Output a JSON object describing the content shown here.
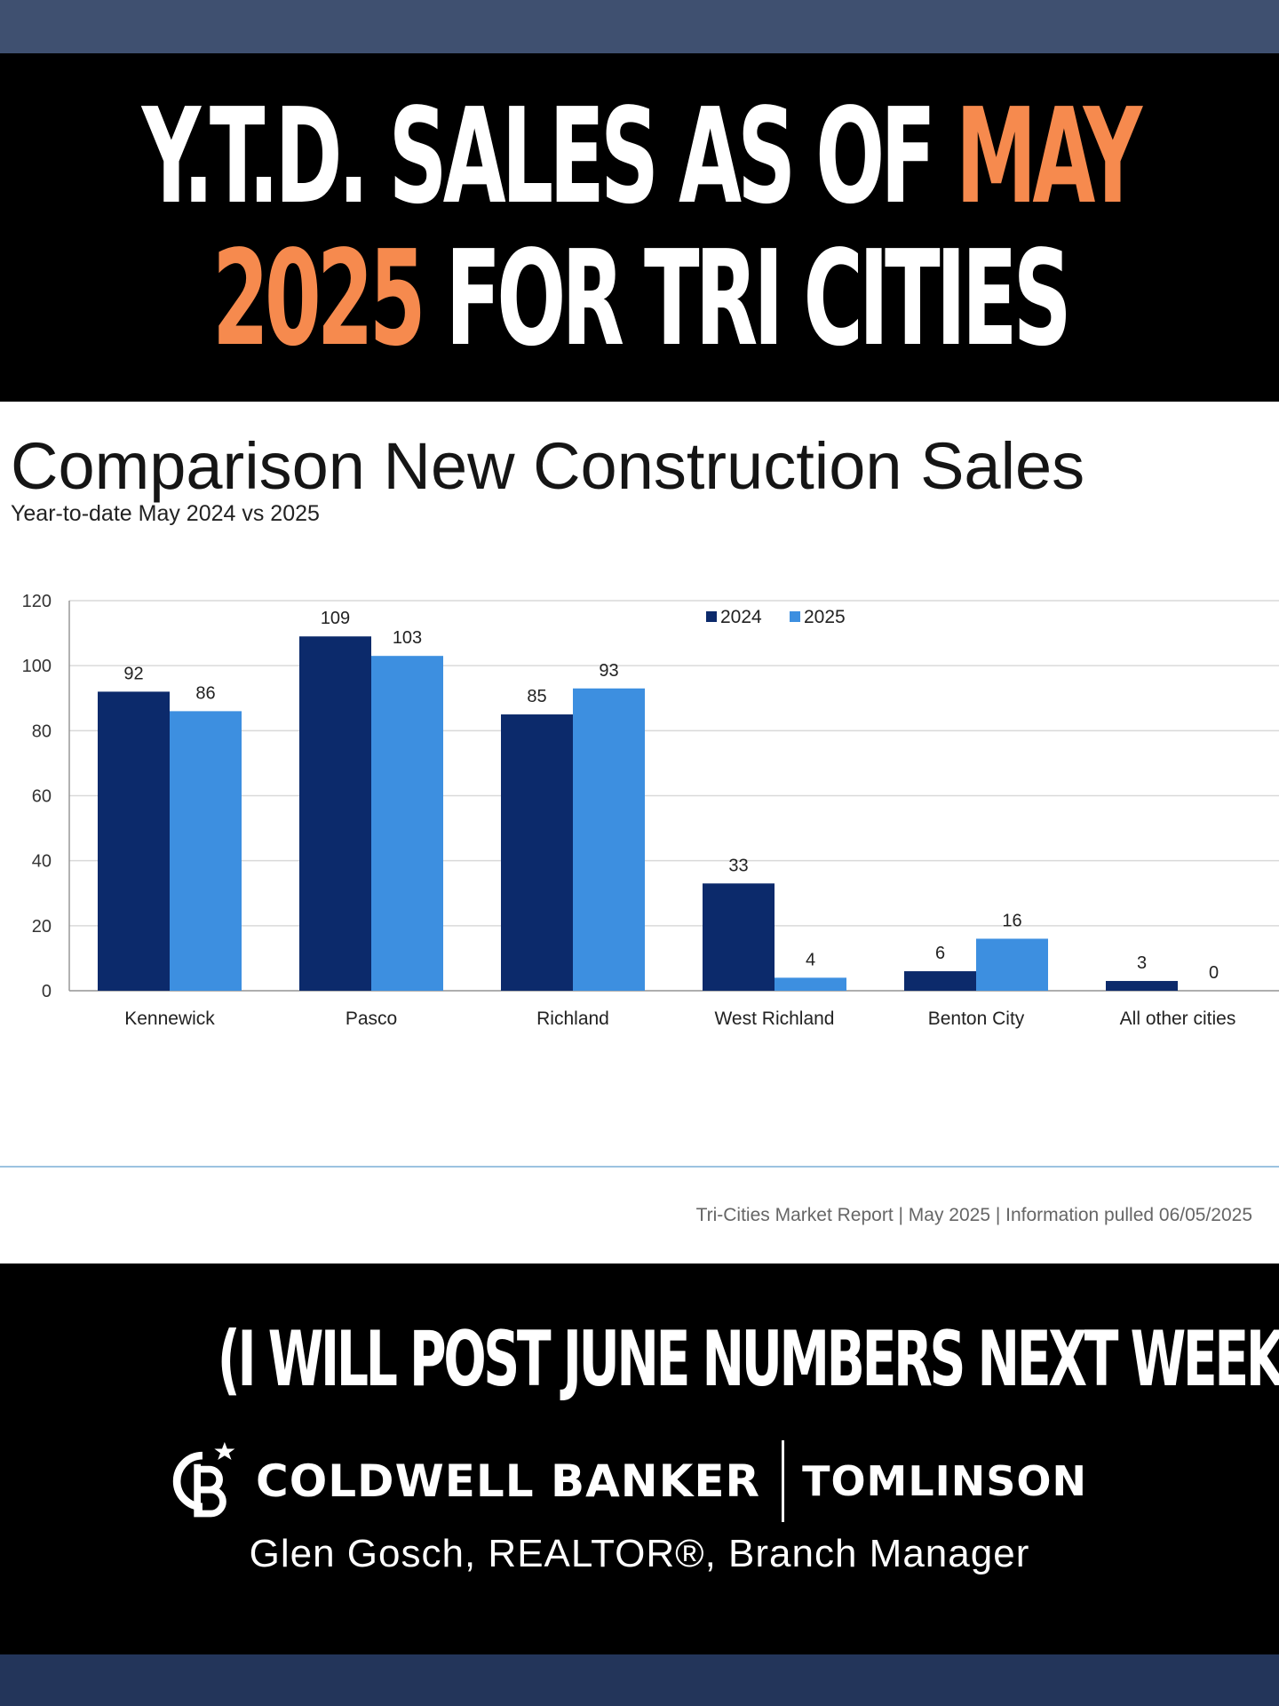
{
  "header": {
    "line1": "Y.T.D. SALES AS OF ",
    "line1_accent": "MAY",
    "line2_accent": "2025",
    "line2": " FOR TRI CITIES",
    "accent_color": "#f68a4e"
  },
  "chart_data": {
    "type": "bar",
    "title": "Comparison New Construction Sales",
    "subtitle": "Year-to-date May 2024 vs 2025",
    "categories": [
      "Kennewick",
      "Pasco",
      "Richland",
      "West Richland",
      "Benton City",
      "All other cities"
    ],
    "series": [
      {
        "name": "2024",
        "values": [
          92,
          109,
          85,
          33,
          6,
          3
        ],
        "color": "#0c2a6b"
      },
      {
        "name": "2025",
        "values": [
          86,
          103,
          93,
          4,
          16,
          0
        ],
        "color": "#3d8fe0"
      }
    ],
    "ylim": [
      0,
      120
    ],
    "yticks": [
      0,
      20,
      40,
      60,
      80,
      100,
      120
    ],
    "grid": true,
    "legend_position": "top-right",
    "data_labels": true
  },
  "source_note": "Tri-Cities Market Report |  May 2025  |  Information pulled 06/05/2025",
  "footer": {
    "note": "(I WILL POST JUNE NUMBERS NEXT WEEK)",
    "brand": "COLDWELL BANKER",
    "brand_sub": "TOMLINSON",
    "agent": "Glen Gosch, REALTOR®, Branch Manager",
    "logo_icon": "coldwell-banker-cb-logo-icon"
  }
}
